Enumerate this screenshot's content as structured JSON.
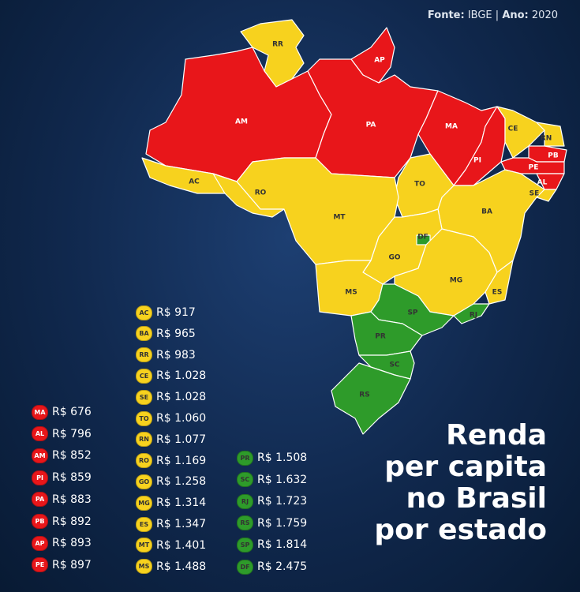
{
  "header": {
    "source_label": "Fonte:",
    "source": "IBGE",
    "separator": "|",
    "year_label": "Ano:",
    "year": "2020"
  },
  "title_lines": [
    "Renda",
    "per capita",
    "no Brasil",
    "por estado"
  ],
  "map": {
    "states": [
      {
        "label": "RR"
      },
      {
        "label": "AP"
      },
      {
        "label": "AM"
      },
      {
        "label": "AC"
      },
      {
        "label": "PA"
      },
      {
        "label": "MA"
      },
      {
        "label": "PI"
      },
      {
        "label": "CE"
      },
      {
        "label": "RN"
      },
      {
        "label": "PB"
      },
      {
        "label": "PE"
      },
      {
        "label": "AL"
      },
      {
        "label": "SE"
      },
      {
        "label": "BA"
      },
      {
        "label": "TO"
      },
      {
        "label": "MT"
      },
      {
        "label": "RO"
      },
      {
        "label": "GO"
      },
      {
        "label": "DF"
      },
      {
        "label": "MS"
      },
      {
        "label": "MG"
      },
      {
        "label": "ES"
      },
      {
        "label": "RJ"
      },
      {
        "label": "SP"
      },
      {
        "label": "PR"
      },
      {
        "label": "SC"
      },
      {
        "label": "RS"
      }
    ]
  },
  "legend": [
    {
      "color": "#e8161a",
      "entries": [
        {
          "state": "MA",
          "value": "R$ 676"
        },
        {
          "state": "AL",
          "value": "R$ 796"
        },
        {
          "state": "AM",
          "value": "R$ 852"
        },
        {
          "state": "PI",
          "value": "R$ 859"
        },
        {
          "state": "PA",
          "value": "R$ 883"
        },
        {
          "state": "PB",
          "value": "R$ 892"
        },
        {
          "state": "AP",
          "value": "R$ 893"
        },
        {
          "state": "PE",
          "value": "R$ 897"
        }
      ]
    },
    {
      "color": "#f7d21e",
      "entries": [
        {
          "state": "AC",
          "value": "R$ 917"
        },
        {
          "state": "BA",
          "value": "R$ 965"
        },
        {
          "state": "RR",
          "value": "R$ 983"
        },
        {
          "state": "CE",
          "value": "R$ 1.028"
        },
        {
          "state": "SE",
          "value": "R$ 1.028"
        },
        {
          "state": "TO",
          "value": "R$ 1.060"
        },
        {
          "state": "RN",
          "value": "R$ 1.077"
        },
        {
          "state": "RO",
          "value": "R$ 1.169"
        },
        {
          "state": "GO",
          "value": "R$ 1.258"
        },
        {
          "state": "MG",
          "value": "R$ 1.314"
        },
        {
          "state": "ES",
          "value": "R$ 1.347"
        },
        {
          "state": "MT",
          "value": "R$ 1.401"
        },
        {
          "state": "MS",
          "value": "R$ 1.488"
        }
      ]
    },
    {
      "color": "#2e9b2a",
      "entries": [
        {
          "state": "PR",
          "value": "R$ 1.508"
        },
        {
          "state": "SC",
          "value": "R$ 1.632"
        },
        {
          "state": "RJ",
          "value": "R$ 1.723"
        },
        {
          "state": "RS",
          "value": "R$ 1.759"
        },
        {
          "state": "SP",
          "value": "R$ 1.814"
        },
        {
          "state": "DF",
          "value": "R$ 2.475"
        }
      ]
    }
  ]
}
